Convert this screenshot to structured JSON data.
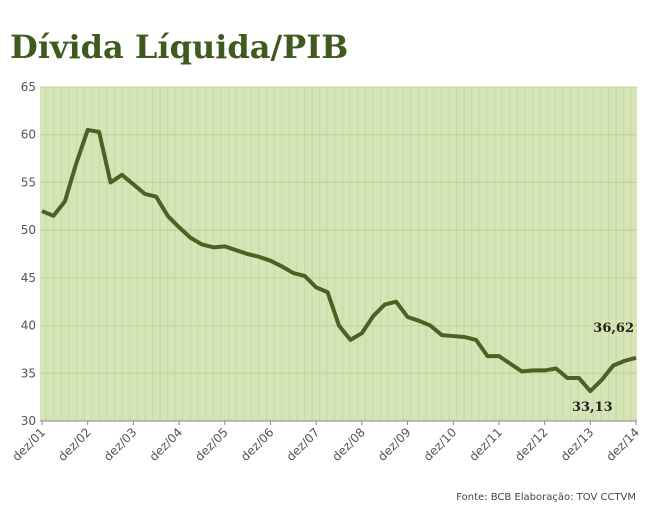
{
  "chart_data": {
    "type": "line",
    "title": "Dívida Líquida/PIB",
    "source": "Fonte: BCB  Elaboração: TOV CCTVM",
    "categories": [
      "dez/01",
      null,
      null,
      null,
      "dez/02",
      null,
      null,
      null,
      "dez/03",
      null,
      null,
      null,
      "dez/04",
      null,
      null,
      null,
      "dez/05",
      null,
      null,
      null,
      "dez/06",
      null,
      null,
      null,
      "dez/07",
      null,
      null,
      null,
      "dez/08",
      null,
      null,
      null,
      "dez/09",
      null,
      null,
      null,
      "dez/10",
      null,
      null,
      null,
      "dez/11",
      null,
      null,
      null,
      "dez/12",
      null,
      null,
      null,
      "dez/13",
      null,
      null,
      null,
      "dez/14"
    ],
    "series": [
      {
        "name": "Dívida Líquida/PIB",
        "color": "#4d6124",
        "values": [
          52,
          51.5,
          53,
          57,
          60.5,
          60.3,
          55,
          55.8,
          54.8,
          53.8,
          53.5,
          51.5,
          50.3,
          49.2,
          48.5,
          48.2,
          48.3,
          47.9,
          47.5,
          47.2,
          46.8,
          46.2,
          45.5,
          45.2,
          44,
          43.5,
          40,
          38.5,
          39.2,
          41,
          42.2,
          42.5,
          40.9,
          40.5,
          40,
          39,
          38.9,
          38.8,
          38.5,
          36.8,
          36.8,
          36,
          35.2,
          35.3,
          35.3,
          35.5,
          34.5,
          34.5,
          33.13,
          34.3,
          35.8,
          36.3,
          36.62
        ],
        "value_labels": [
          null,
          null,
          null,
          null,
          null,
          null,
          null,
          null,
          null,
          null,
          null,
          null,
          null,
          null,
          null,
          null,
          null,
          null,
          null,
          null,
          null,
          null,
          null,
          null,
          null,
          null,
          null,
          null,
          null,
          null,
          null,
          null,
          null,
          null,
          null,
          null,
          null,
          null,
          null,
          null,
          null,
          null,
          null,
          null,
          null,
          null,
          null,
          null,
          "33,13",
          null,
          null,
          null,
          "36,62"
        ]
      }
    ],
    "ylim": [
      30,
      65
    ],
    "yticks": [
      30,
      35,
      40,
      45,
      50,
      55,
      60,
      65
    ],
    "grid": true
  }
}
